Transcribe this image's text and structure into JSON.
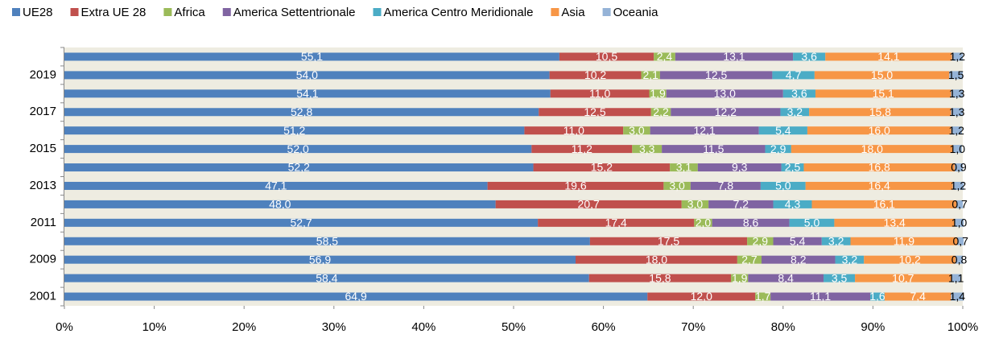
{
  "chart_data": {
    "type": "stacked_barh",
    "categories": [
      null,
      "2019",
      null,
      "2017",
      null,
      "2015",
      null,
      "2013",
      null,
      "2011",
      null,
      "2009",
      null,
      "2001"
    ],
    "series": [
      {
        "name": "UE28",
        "color": "#4f81bd",
        "label_color": "#ffffff",
        "values": [
          55.1,
          54.0,
          54.1,
          52.8,
          51.2,
          52.0,
          52.2,
          47.1,
          48.0,
          52.7,
          58.5,
          56.9,
          58.4,
          64.9
        ],
        "value_labels": [
          "55,1",
          "54,0",
          "54,1",
          "52,8",
          "51,2",
          "52,0",
          "52,2",
          "47,1",
          "48,0",
          "52,7",
          "58,5",
          "56,9",
          "58,4",
          "64,9"
        ]
      },
      {
        "name": "Extra UE 28",
        "color": "#c0504d",
        "label_color": "#ffffff",
        "values": [
          10.5,
          10.2,
          11.0,
          12.5,
          11.0,
          11.2,
          15.2,
          19.6,
          20.7,
          17.4,
          17.5,
          18.0,
          15.8,
          12.0
        ],
        "value_labels": [
          "10,5",
          "10,2",
          "11,0",
          "12,5",
          "11,0",
          "11,2",
          "15,2",
          "19,6",
          "20,7",
          "17,4",
          "17,5",
          "18,0",
          "15,8",
          "12,0"
        ]
      },
      {
        "name": "Africa",
        "color": "#9bbb59",
        "label_color": "#ffffff",
        "values": [
          2.4,
          2.1,
          1.9,
          2.2,
          3.0,
          3.3,
          3.1,
          3.0,
          3.0,
          2.0,
          2.9,
          2.7,
          1.9,
          1.7
        ],
        "value_labels": [
          "2,4",
          "2,1",
          "1,9",
          "2,2",
          "3,0",
          "3,3",
          "3,1",
          "3,0",
          "3,0",
          "2,0",
          "2,9",
          "2,7",
          "1,9",
          "1,7"
        ]
      },
      {
        "name": "America Settentrionale",
        "color": "#8064a2",
        "label_color": "#ffffff",
        "values": [
          13.1,
          12.5,
          13.0,
          12.2,
          12.1,
          11.5,
          9.3,
          7.8,
          7.2,
          8.6,
          5.4,
          8.2,
          8.4,
          11.1
        ],
        "value_labels": [
          "13,1",
          "12,5",
          "13,0",
          "12,2",
          "12,1",
          "11,5",
          "9,3",
          "7,8",
          "7,2",
          "8,6",
          "5,4",
          "8,2",
          "8,4",
          "11,1"
        ]
      },
      {
        "name": "America Centro Meridionale",
        "color": "#4bacc6",
        "label_color": "#ffffff",
        "values": [
          3.6,
          4.7,
          3.6,
          3.2,
          5.4,
          2.9,
          2.5,
          5.0,
          4.3,
          5.0,
          3.2,
          3.2,
          3.5,
          1.6
        ],
        "value_labels": [
          "3,6",
          "4,7",
          "3,6",
          "3,2",
          "5,4",
          "2,9",
          "2,5",
          "5,0",
          "4,3",
          "5,0",
          "3,2",
          "3,2",
          "3,5",
          "1,6"
        ]
      },
      {
        "name": "Asia",
        "color": "#f79646",
        "label_color": "#ffffff",
        "values": [
          14.1,
          15.0,
          15.1,
          15.8,
          16.0,
          18.0,
          16.8,
          16.4,
          16.1,
          13.4,
          11.9,
          10.2,
          10.7,
          7.4
        ],
        "value_labels": [
          "14,1",
          "15,0",
          "15,1",
          "15,8",
          "16,0",
          "18,0",
          "16,8",
          "16,4",
          "16,1",
          "13,4",
          "11,9",
          "10,2",
          "10,7",
          "7,4"
        ]
      },
      {
        "name": "Oceania",
        "color": "#95b3d7",
        "label_color": "#000000",
        "values": [
          1.2,
          1.5,
          1.3,
          1.3,
          1.2,
          1.0,
          0.9,
          1.2,
          0.7,
          1.0,
          0.7,
          0.8,
          1.1,
          1.4
        ],
        "value_labels": [
          "1,2",
          "1,5",
          "1,3",
          "1,3",
          "1,2",
          "1,0",
          "0,9",
          "1,2",
          "0,7",
          "1,0",
          "0,7",
          "0,8",
          "1,1",
          "1,4"
        ]
      }
    ],
    "xlim": [
      0,
      100
    ],
    "xticks": [
      {
        "value": 0,
        "label": "0%"
      },
      {
        "value": 10,
        "label": "10%"
      },
      {
        "value": 20,
        "label": "20%"
      },
      {
        "value": 30,
        "label": "30%"
      },
      {
        "value": 40,
        "label": "40%"
      },
      {
        "value": 50,
        "label": "50%"
      },
      {
        "value": 60,
        "label": "60%"
      },
      {
        "value": 70,
        "label": "70%"
      },
      {
        "value": 80,
        "label": "80%"
      },
      {
        "value": 90,
        "label": "90%"
      },
      {
        "value": 100,
        "label": "100%"
      }
    ],
    "legend": "top",
    "plot_background": "#eeece1"
  }
}
